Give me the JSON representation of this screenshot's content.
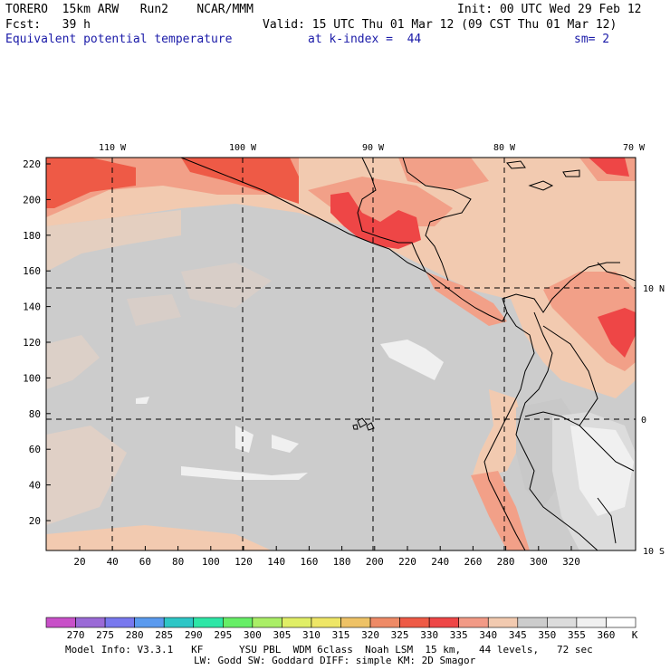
{
  "header": {
    "line1_left": "TORERO  15km ARW   Run2    NCAR/MMM",
    "line1_right": "Init: 00 UTC Wed 29 Feb 12",
    "line2_left": "Fcst:   39 h",
    "line2_right": "Valid: 15 UTC Thu 01 Mar 12 (09 CST Thu 01 Mar 12)",
    "field_name": "Equivalent potential temperature",
    "level": "at k-index =  44",
    "smoothing": "sm= 2"
  },
  "map": {
    "lon_labels": [
      "110 W",
      "100 W",
      "90 W",
      "80 W",
      "70 W"
    ],
    "lat_labels": [
      "10 N",
      "0",
      "10 S"
    ],
    "y_ticks": [
      "220",
      "200",
      "180",
      "160",
      "140",
      "120",
      "100",
      "80",
      "60",
      "40",
      "20"
    ],
    "x_ticks": [
      "20",
      "40",
      "60",
      "80",
      "100",
      "120",
      "140",
      "160",
      "180",
      "200",
      "220",
      "240",
      "260",
      "280",
      "300",
      "320"
    ]
  },
  "colorbar": {
    "values": [
      "270",
      "275",
      "280",
      "285",
      "290",
      "295",
      "300",
      "305",
      "310",
      "315",
      "320",
      "325",
      "330",
      "335",
      "340",
      "345",
      "350",
      "355",
      "360"
    ],
    "unit": "K",
    "colors": [
      "#c850c8",
      "#9a6ad6",
      "#7878ee",
      "#5a9aee",
      "#2ec6c6",
      "#2ee6a6",
      "#66ee66",
      "#aaee66",
      "#e0ee66",
      "#eee666",
      "#eec266",
      "#ee8a66",
      "#ee5a46",
      "#ee4646",
      "#f29a86",
      "#f2cab0",
      "#cccccc",
      "#dcdcdc",
      "#f0f0f0",
      "#ffffff"
    ]
  },
  "footer": {
    "line1": "Model Info: V3.3.1   KF      YSU PBL  WDM 6class  Noah LSM  15 km,   44 levels,   72 sec",
    "line2": "LW: Godd SW: Goddard DIFF: simple KM: 2D Smagor"
  }
}
